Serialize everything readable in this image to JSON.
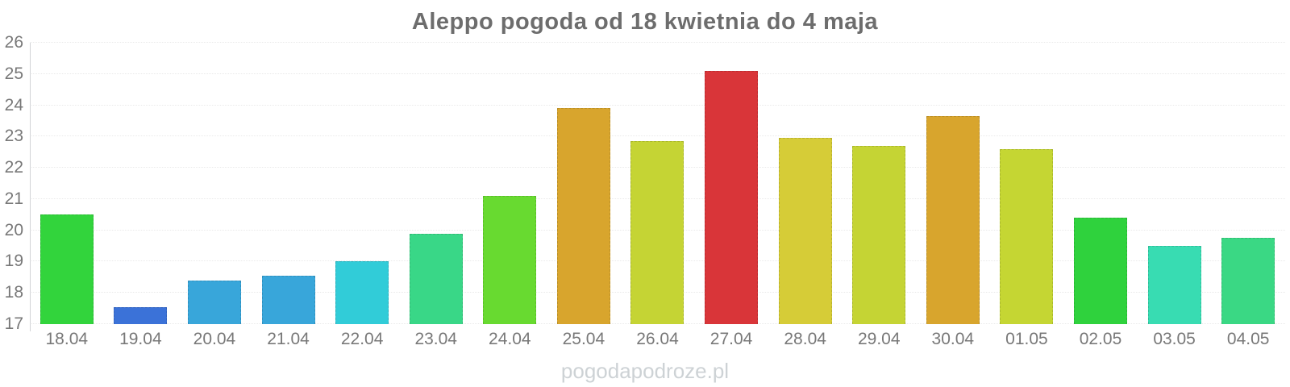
{
  "title": "Aleppo pogoda od 18 kwietnia do 4 maja",
  "watermark": "pogodapodroze.pl",
  "axis": {
    "label_color": "#787878",
    "line_color": "#d2d4d6",
    "grid_color": "#e9e9e9"
  },
  "chart_data": {
    "type": "bar",
    "title": "Aleppo pogoda od 18 kwietnia do 4 maja",
    "xlabel": "",
    "ylabel": "",
    "categories": [
      "18.04",
      "19.04",
      "20.04",
      "21.04",
      "22.04",
      "23.04",
      "24.04",
      "25.04",
      "26.04",
      "27.04",
      "28.04",
      "29.04",
      "30.04",
      "01.05",
      "02.05",
      "03.05",
      "04.05"
    ],
    "values": [
      20.5,
      17.55,
      18.4,
      18.55,
      19.0,
      19.9,
      21.1,
      23.9,
      22.85,
      25.1,
      22.95,
      22.7,
      23.65,
      22.6,
      20.4,
      19.5,
      19.75
    ],
    "bar_colors": [
      "#32d43c",
      "#3b72d8",
      "#38a6da",
      "#38a6da",
      "#31ccd8",
      "#39d787",
      "#68da30",
      "#d8a52d",
      "#c5d434",
      "#d93539",
      "#d6cc37",
      "#c5d434",
      "#d8a52d",
      "#c5d633",
      "#2fd23d",
      "#38dcb2",
      "#3ad884"
    ],
    "ylim": [
      17,
      26
    ],
    "yticks": [
      17,
      18,
      19,
      20,
      21,
      22,
      23,
      24,
      25,
      26
    ],
    "grid": "horizontal-dotted",
    "legend": "none"
  }
}
